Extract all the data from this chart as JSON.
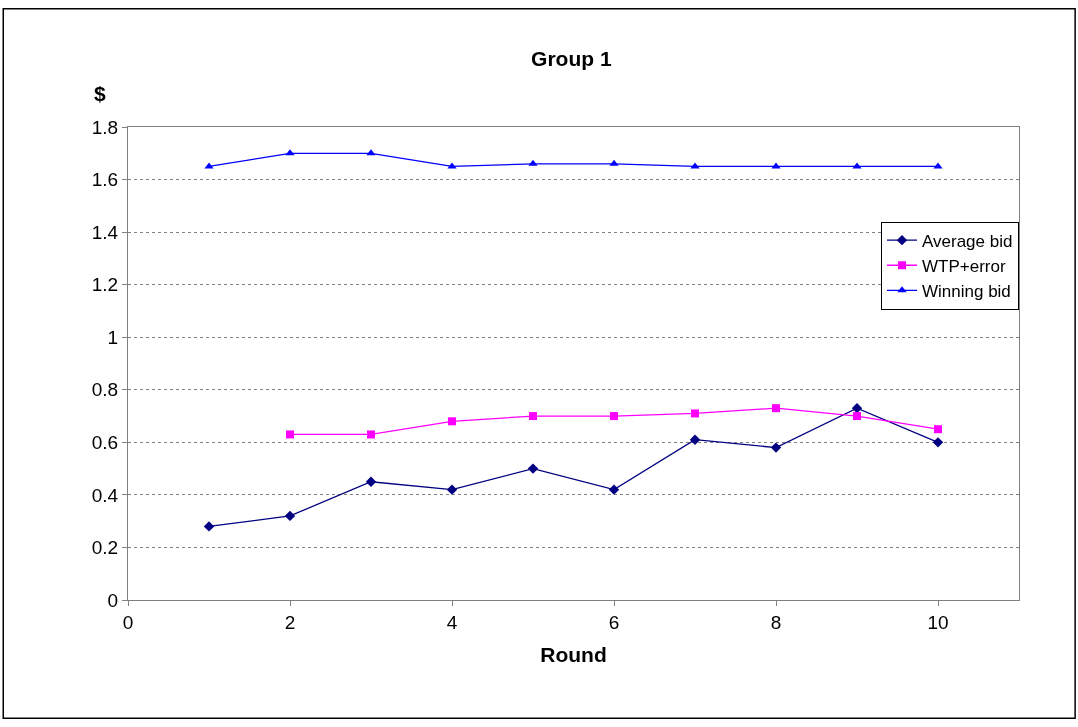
{
  "chart_data": {
    "type": "line",
    "title": "Group 1",
    "xlabel": "Round",
    "ylabel": "$",
    "x": [
      1,
      2,
      3,
      4,
      5,
      6,
      7,
      8,
      9,
      10
    ],
    "series": [
      {
        "name": "Average bid",
        "color": "#000080",
        "marker": "diamond",
        "values": [
          0.28,
          0.32,
          0.45,
          0.42,
          0.5,
          0.42,
          0.61,
          0.58,
          0.73,
          0.6
        ]
      },
      {
        "name": "WTP+error",
        "color": "#ff00ff",
        "marker": "square",
        "values": [
          null,
          0.63,
          0.63,
          0.68,
          0.7,
          0.7,
          0.71,
          0.73,
          0.7,
          0.65
        ]
      },
      {
        "name": "Winning bid",
        "color": "#0000ff",
        "marker": "triangle",
        "values": [
          1.65,
          1.7,
          1.7,
          1.65,
          1.66,
          1.66,
          1.65,
          1.65,
          1.65,
          1.65
        ]
      }
    ],
    "xlim": [
      0,
      11
    ],
    "xticks": [
      0,
      2,
      4,
      6,
      8,
      10
    ],
    "ylim": [
      0,
      1.8
    ],
    "yticks": [
      0,
      0.2,
      0.4,
      0.6,
      0.8,
      1,
      1.2,
      1.4,
      1.6,
      1.8
    ],
    "grid": "y",
    "legend": "right",
    "line_style": "solid"
  }
}
